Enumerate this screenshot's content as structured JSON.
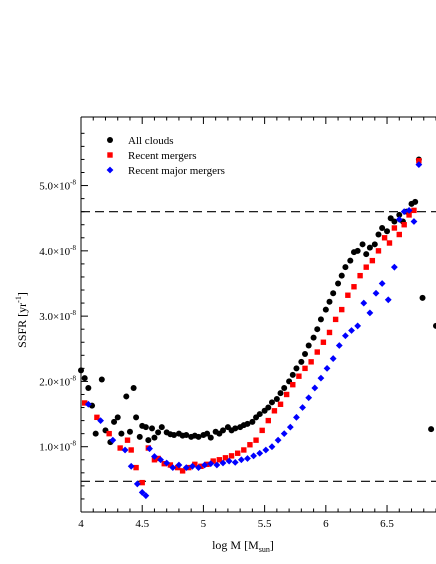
{
  "chart_data": {
    "type": "scatter",
    "xlabel": "log M [M",
    "xlabel_sub": "sun",
    "xlabel_close": "]",
    "ylabel": "SSFR [yr",
    "ylabel_sup": "-1",
    "ylabel_close": "]",
    "xlim": [
      4,
      6.9
    ],
    "ylim": [
      0.0,
      6.05e-08
    ],
    "x_ticks": [
      {
        "value": 4,
        "label": "4"
      },
      {
        "value": 4.5,
        "label": "4.5"
      },
      {
        "value": 5,
        "label": "5"
      },
      {
        "value": 5.5,
        "label": "5.5"
      },
      {
        "value": 6,
        "label": "6"
      },
      {
        "value": 6.5,
        "label": "6.5"
      }
    ],
    "y_ticks": [
      {
        "value": 1e-08,
        "base": "1.0×10",
        "exp": "-8"
      },
      {
        "value": 2e-08,
        "base": "2.0×10",
        "exp": "-8"
      },
      {
        "value": 3e-08,
        "base": "3.0×10",
        "exp": "-8"
      },
      {
        "value": 4e-08,
        "base": "4.0×10",
        "exp": "-8"
      },
      {
        "value": 5e-08,
        "base": "5.0×10",
        "exp": "-8"
      }
    ],
    "legend_position": "top-left",
    "reference_lines": [
      4.6e-08,
      4.7e-09
    ],
    "series": [
      {
        "name": "All clouds",
        "marker": "circle",
        "color": "#000000",
        "points": [
          [
            4.0,
            2.17
          ],
          [
            4.03,
            2.05
          ],
          [
            4.06,
            1.9
          ],
          [
            4.09,
            1.63
          ],
          [
            4.12,
            1.2
          ],
          [
            4.17,
            2.03
          ],
          [
            4.2,
            1.25
          ],
          [
            4.24,
            1.07
          ],
          [
            4.27,
            1.38
          ],
          [
            4.3,
            1.45
          ],
          [
            4.33,
            1.2
          ],
          [
            4.37,
            1.77
          ],
          [
            4.4,
            1.23
          ],
          [
            4.43,
            1.9
          ],
          [
            4.45,
            1.45
          ],
          [
            4.48,
            1.15
          ],
          [
            4.5,
            1.32
          ],
          [
            4.53,
            1.3
          ],
          [
            4.55,
            1.1
          ],
          [
            4.58,
            1.28
          ],
          [
            4.6,
            1.14
          ],
          [
            4.63,
            1.22
          ],
          [
            4.66,
            1.3
          ],
          [
            4.7,
            1.22
          ],
          [
            4.73,
            1.19
          ],
          [
            4.76,
            1.18
          ],
          [
            4.8,
            1.2
          ],
          [
            4.83,
            1.17
          ],
          [
            4.86,
            1.18
          ],
          [
            4.9,
            1.15
          ],
          [
            4.93,
            1.17
          ],
          [
            4.96,
            1.15
          ],
          [
            5.0,
            1.18
          ],
          [
            5.03,
            1.2
          ],
          [
            5.06,
            1.14
          ],
          [
            5.1,
            1.23
          ],
          [
            5.13,
            1.2
          ],
          [
            5.16,
            1.25
          ],
          [
            5.2,
            1.3
          ],
          [
            5.23,
            1.25
          ],
          [
            5.26,
            1.28
          ],
          [
            5.3,
            1.3
          ],
          [
            5.33,
            1.33
          ],
          [
            5.36,
            1.35
          ],
          [
            5.4,
            1.38
          ],
          [
            5.43,
            1.45
          ],
          [
            5.46,
            1.5
          ],
          [
            5.5,
            1.55
          ],
          [
            5.53,
            1.6
          ],
          [
            5.56,
            1.68
          ],
          [
            5.6,
            1.73
          ],
          [
            5.63,
            1.82
          ],
          [
            5.66,
            1.9
          ],
          [
            5.7,
            2.0
          ],
          [
            5.73,
            2.1
          ],
          [
            5.76,
            2.2
          ],
          [
            5.8,
            2.3
          ],
          [
            5.83,
            2.42
          ],
          [
            5.86,
            2.55
          ],
          [
            5.9,
            2.67
          ],
          [
            5.93,
            2.8
          ],
          [
            5.96,
            2.95
          ],
          [
            6.0,
            3.1
          ],
          [
            6.03,
            3.22
          ],
          [
            6.06,
            3.35
          ],
          [
            6.1,
            3.5
          ],
          [
            6.13,
            3.62
          ],
          [
            6.16,
            3.75
          ],
          [
            6.2,
            3.85
          ],
          [
            6.23,
            3.98
          ],
          [
            6.26,
            4.0
          ],
          [
            6.3,
            4.1
          ],
          [
            6.33,
            3.95
          ],
          [
            6.36,
            4.05
          ],
          [
            6.4,
            4.1
          ],
          [
            6.43,
            4.25
          ],
          [
            6.46,
            4.35
          ],
          [
            6.5,
            4.3
          ],
          [
            6.53,
            4.5
          ],
          [
            6.56,
            4.45
          ],
          [
            6.6,
            4.55
          ],
          [
            6.63,
            4.45
          ],
          [
            6.66,
            4.6
          ],
          [
            6.7,
            4.72
          ],
          [
            6.73,
            4.75
          ],
          [
            6.76,
            5.4
          ],
          [
            6.79,
            3.28
          ],
          [
            6.86,
            1.27
          ],
          [
            6.9,
            2.85
          ]
        ]
      },
      {
        "name": "Recent mergers",
        "marker": "square",
        "color": "#ff0000",
        "points": [
          [
            4.03,
            1.67
          ],
          [
            4.13,
            1.45
          ],
          [
            4.23,
            1.2
          ],
          [
            4.32,
            0.98
          ],
          [
            4.38,
            1.1
          ],
          [
            4.41,
            0.95
          ],
          [
            4.45,
            0.68
          ],
          [
            4.5,
            0.45
          ],
          [
            4.55,
            0.98
          ],
          [
            4.6,
            0.8
          ],
          [
            4.63,
            0.82
          ],
          [
            4.68,
            0.74
          ],
          [
            4.73,
            0.72
          ],
          [
            4.79,
            0.68
          ],
          [
            4.83,
            0.63
          ],
          [
            4.88,
            0.68
          ],
          [
            4.93,
            0.73
          ],
          [
            4.98,
            0.7
          ],
          [
            5.03,
            0.73
          ],
          [
            5.08,
            0.78
          ],
          [
            5.13,
            0.8
          ],
          [
            5.18,
            0.83
          ],
          [
            5.23,
            0.86
          ],
          [
            5.28,
            0.9
          ],
          [
            5.33,
            0.95
          ],
          [
            5.38,
            1.03
          ],
          [
            5.43,
            1.1
          ],
          [
            5.48,
            1.25
          ],
          [
            5.53,
            1.4
          ],
          [
            5.58,
            1.55
          ],
          [
            5.63,
            1.65
          ],
          [
            5.68,
            1.8
          ],
          [
            5.73,
            1.95
          ],
          [
            5.78,
            2.08
          ],
          [
            5.83,
            2.2
          ],
          [
            5.88,
            2.3
          ],
          [
            5.93,
            2.45
          ],
          [
            5.98,
            2.6
          ],
          [
            6.03,
            2.75
          ],
          [
            6.08,
            2.95
          ],
          [
            6.13,
            3.1
          ],
          [
            6.18,
            3.32
          ],
          [
            6.23,
            3.45
          ],
          [
            6.28,
            3.62
          ],
          [
            6.33,
            3.75
          ],
          [
            6.38,
            3.85
          ],
          [
            6.43,
            4.0
          ],
          [
            6.48,
            4.2
          ],
          [
            6.52,
            4.12
          ],
          [
            6.56,
            4.35
          ],
          [
            6.6,
            4.25
          ],
          [
            6.64,
            4.4
          ],
          [
            6.68,
            4.55
          ],
          [
            6.72,
            4.62
          ],
          [
            6.76,
            5.38
          ]
        ]
      },
      {
        "name": "Recent major mergers",
        "marker": "diamond",
        "color": "#0000ff",
        "points": [
          [
            4.06,
            1.65
          ],
          [
            4.16,
            1.4
          ],
          [
            4.26,
            1.1
          ],
          [
            4.36,
            0.95
          ],
          [
            4.41,
            0.7
          ],
          [
            4.46,
            0.43
          ],
          [
            4.5,
            0.3
          ],
          [
            4.53,
            0.25
          ],
          [
            4.56,
            0.97
          ],
          [
            4.6,
            0.85
          ],
          [
            4.65,
            0.8
          ],
          [
            4.7,
            0.75
          ],
          [
            4.75,
            0.68
          ],
          [
            4.8,
            0.72
          ],
          [
            4.86,
            0.68
          ],
          [
            4.91,
            0.7
          ],
          [
            4.96,
            0.68
          ],
          [
            5.01,
            0.72
          ],
          [
            5.06,
            0.74
          ],
          [
            5.11,
            0.72
          ],
          [
            5.16,
            0.75
          ],
          [
            5.21,
            0.78
          ],
          [
            5.26,
            0.76
          ],
          [
            5.31,
            0.8
          ],
          [
            5.36,
            0.82
          ],
          [
            5.41,
            0.86
          ],
          [
            5.46,
            0.9
          ],
          [
            5.51,
            0.95
          ],
          [
            5.56,
            1.0
          ],
          [
            5.61,
            1.1
          ],
          [
            5.66,
            1.2
          ],
          [
            5.71,
            1.3
          ],
          [
            5.76,
            1.45
          ],
          [
            5.81,
            1.6
          ],
          [
            5.86,
            1.75
          ],
          [
            5.91,
            1.9
          ],
          [
            5.96,
            2.05
          ],
          [
            6.01,
            2.2
          ],
          [
            6.06,
            2.35
          ],
          [
            6.11,
            2.55
          ],
          [
            6.16,
            2.7
          ],
          [
            6.21,
            2.78
          ],
          [
            6.26,
            2.85
          ],
          [
            6.31,
            3.2
          ],
          [
            6.36,
            3.05
          ],
          [
            6.41,
            3.35
          ],
          [
            6.46,
            3.5
          ],
          [
            6.51,
            3.25
          ],
          [
            6.56,
            3.75
          ],
          [
            6.6,
            4.48
          ],
          [
            6.64,
            4.6
          ],
          [
            6.68,
            4.62
          ],
          [
            6.72,
            4.45
          ],
          [
            6.76,
            5.32
          ]
        ]
      }
    ]
  },
  "colors": {
    "all_clouds": "#000000",
    "recent_mergers": "#ff0000",
    "recent_major_mergers": "#0000ff"
  }
}
